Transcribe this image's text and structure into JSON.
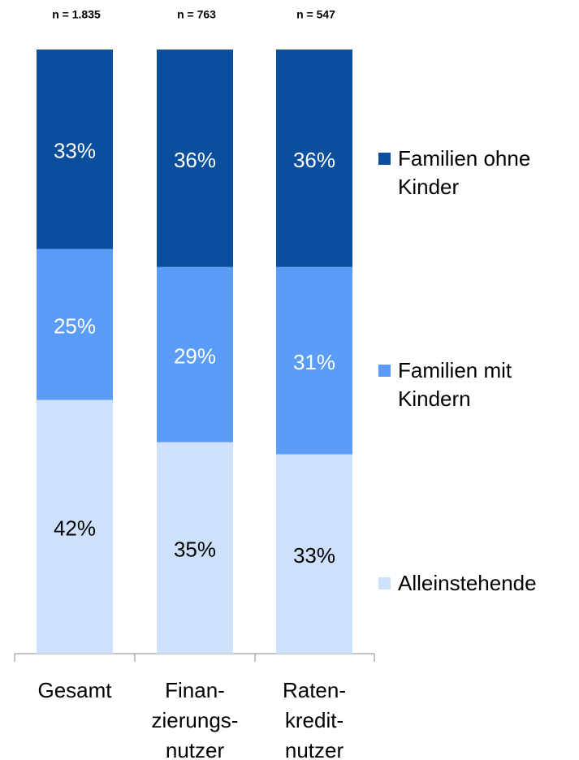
{
  "chart_data": {
    "type": "stacked_bar",
    "categories": [
      "Gesamt",
      "Finan-\nzierungs-\nnutzer",
      "Raten-\nkredit-\nnutzer"
    ],
    "sample_sizes": [
      "n = 1.835",
      "n = 763",
      "n = 547"
    ],
    "ylim": [
      0,
      100
    ],
    "series": [
      {
        "name": "Alleinstehende",
        "color": "#cde0fc",
        "label_color": "#000000",
        "values": [
          42,
          35,
          33
        ],
        "value_labels": [
          "42%",
          "35%",
          "33%"
        ]
      },
      {
        "name": "Familien mit\nKindern",
        "color": "#5a9cf8",
        "label_color": "#ffffff",
        "values": [
          25,
          29,
          31
        ],
        "value_labels": [
          "25%",
          "29%",
          "31%"
        ]
      },
      {
        "name": "Familien ohne\nKinder",
        "color": "#0a4f9e",
        "label_color": "#ffffff",
        "values": [
          33,
          36,
          36
        ],
        "value_labels": [
          "33%",
          "36%",
          "36%"
        ]
      }
    ]
  }
}
